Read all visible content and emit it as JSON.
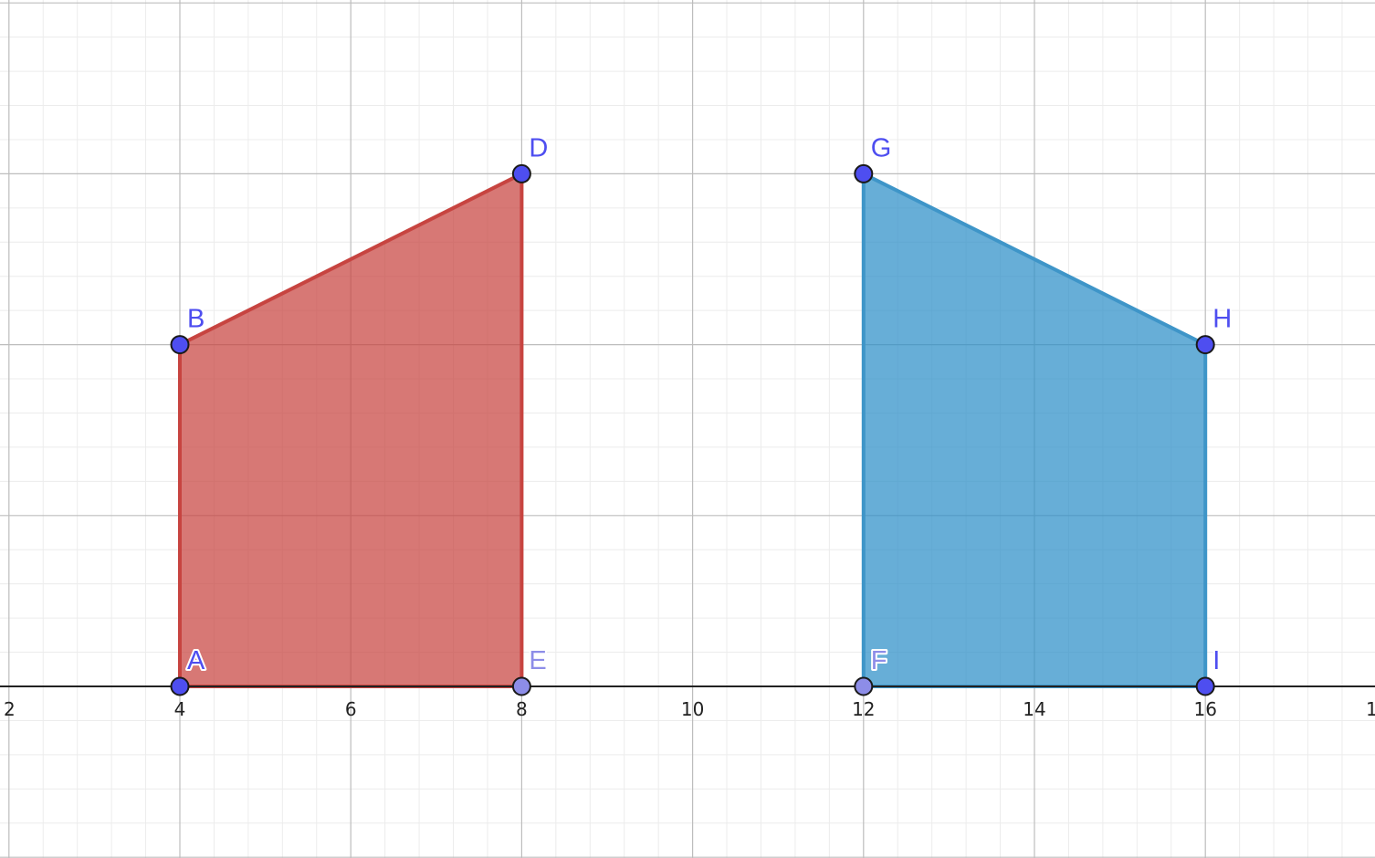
{
  "chart_data": {
    "type": "scatter",
    "grid": true,
    "xlim": [
      1.9,
      17.9
    ],
    "ylim": [
      -2,
      8
    ],
    "x_ticks": [
      "2",
      "4",
      "6",
      "8",
      "10",
      "12",
      "14",
      "16",
      "1"
    ],
    "polygons": [
      {
        "vertices": [
          "A",
          "B",
          "D",
          "E"
        ],
        "fill": "#C74440",
        "stroke": "#C74440"
      },
      {
        "vertices": [
          "F",
          "G",
          "H",
          "I"
        ],
        "fill": "#2D8FC8",
        "stroke": "#3E95C8"
      }
    ],
    "points": [
      {
        "label": "A",
        "x": 4,
        "y": 0,
        "color": "#4E4EF0"
      },
      {
        "label": "B",
        "x": 4,
        "y": 4,
        "color": "#4E4EF0"
      },
      {
        "label": "D",
        "x": 8,
        "y": 6,
        "color": "#4E4EF0"
      },
      {
        "label": "E",
        "x": 8,
        "y": 0,
        "color": "#8D8DE8"
      },
      {
        "label": "F",
        "x": 12,
        "y": 0,
        "color": "#8D8DE8"
      },
      {
        "label": "G",
        "x": 12,
        "y": 6,
        "color": "#4E4EF0"
      },
      {
        "label": "H",
        "x": 16,
        "y": 4,
        "color": "#4E4EF0"
      },
      {
        "label": "I",
        "x": 16,
        "y": 0,
        "color": "#4E4EF0"
      }
    ],
    "colors": {
      "axis": "#222222",
      "grid_major": "#bdbdbd",
      "grid_minor": "#ececec"
    }
  }
}
